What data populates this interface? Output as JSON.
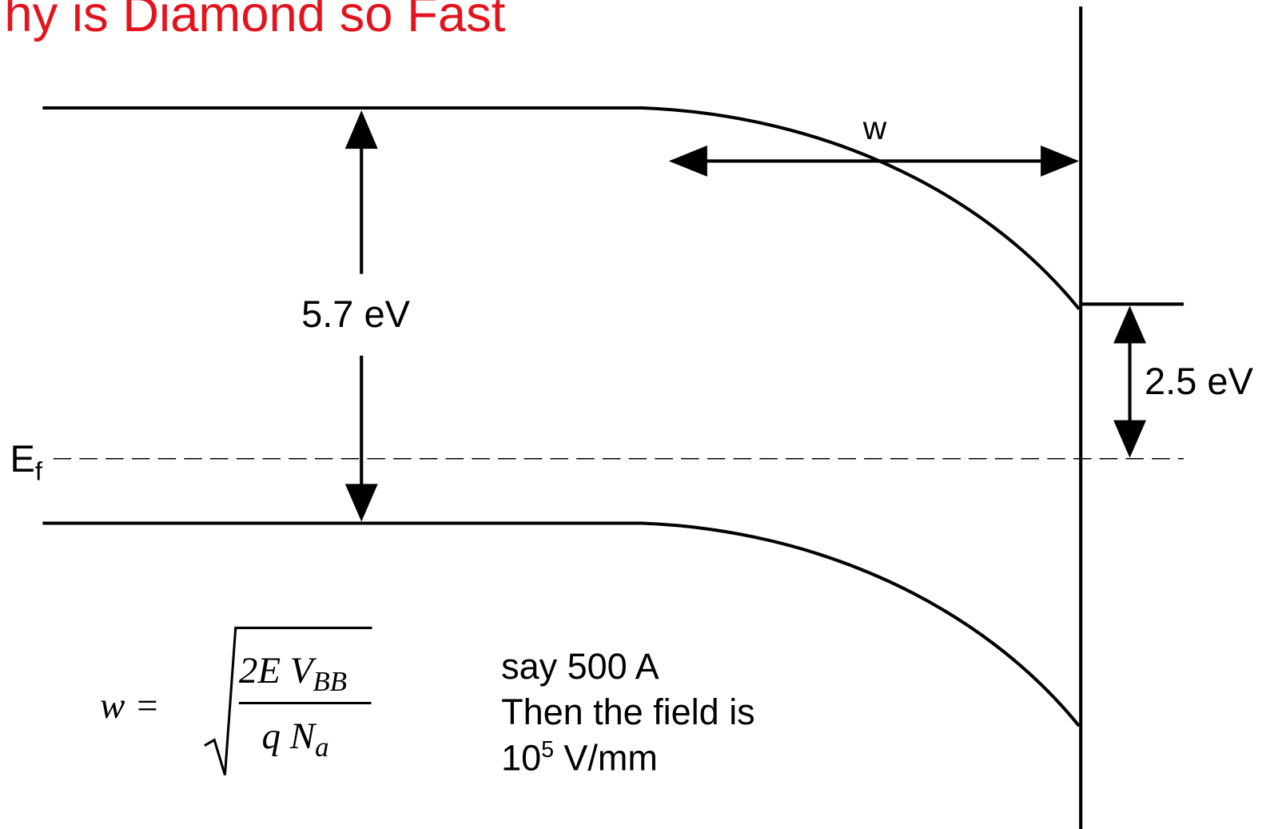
{
  "title": "hy is Diamond so Fast",
  "labels": {
    "width": "w",
    "band_gap": "5.7 eV",
    "barrier": "2.5 eV",
    "fermi": {
      "main": "E",
      "sub": "f"
    }
  },
  "formula": {
    "lhs": "w =",
    "numerator": {
      "main": "2E V",
      "sub": "BB"
    },
    "denominator": {
      "main": "q N",
      "sub": "a"
    }
  },
  "notes": [
    "say 500 A",
    "Then the field is"
  ],
  "field": {
    "base": "10",
    "exp": "5",
    "unit": "V/mm"
  }
}
